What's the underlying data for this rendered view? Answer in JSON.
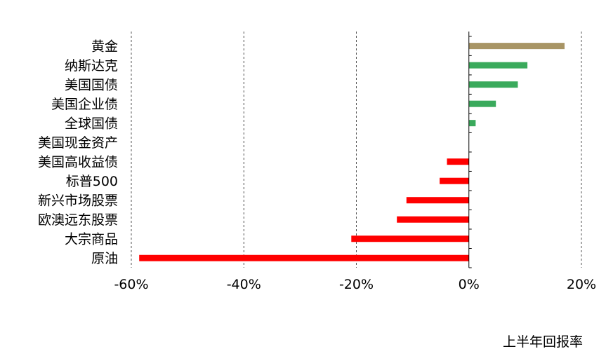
{
  "chart_data": {
    "type": "bar",
    "orientation": "horizontal",
    "categories": [
      "黄金",
      "纳斯达克",
      "美国国债",
      "美国企业债",
      "全球国债",
      "美国现金资产",
      "美国高收益债",
      "标普500",
      "新兴市场股票",
      "欧澳远东股票",
      "大宗商品",
      "原油"
    ],
    "values": [
      17,
      10.4,
      8.7,
      4.8,
      1.2,
      0,
      -3.9,
      -5.2,
      -11.1,
      -12.8,
      -20.9,
      -58.6
    ],
    "bar_colors": [
      "#a89565",
      "#3aaa5c",
      "#3aaa5c",
      "#3aaa5c",
      "#3aaa5c",
      "#3aaa5c",
      "#ff0000",
      "#ff0000",
      "#ff0000",
      "#ff0000",
      "#ff0000",
      "#ff0000"
    ],
    "xlim": [
      -60,
      20
    ],
    "xticks": [
      -60,
      -40,
      -20,
      0,
      20
    ],
    "xtick_labels": [
      "-60%",
      "-40%",
      "-20%",
      "0%",
      "20%"
    ],
    "xlabel": "上半年回报率",
    "grid": "vertical dashed",
    "legend": "none"
  }
}
